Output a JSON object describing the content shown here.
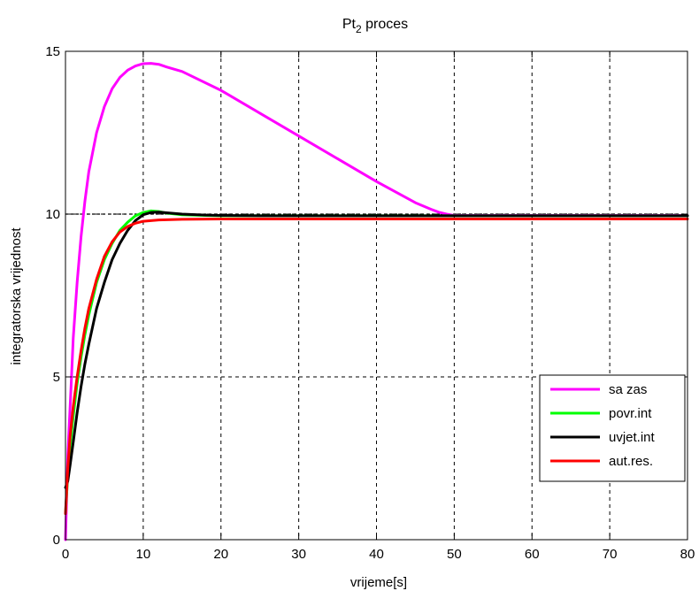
{
  "chart_data": {
    "type": "line",
    "title": {
      "main": "Pt",
      "subscript": "2",
      "rest": " proces"
    },
    "xlabel": "vrijeme[s]",
    "ylabel": "integratorska vrijednost",
    "xlim": [
      0,
      80
    ],
    "ylim": [
      0,
      15
    ],
    "xticks": [
      0,
      10,
      20,
      30,
      40,
      50,
      60,
      70,
      80
    ],
    "yticks": [
      0,
      5,
      10,
      15
    ],
    "grid": "dashed",
    "legend_position": "bottom-right",
    "series": [
      {
        "name": "sa zas",
        "color": "#ff00ff",
        "x": [
          0,
          0.3,
          0.7,
          1.0,
          1.5,
          2.0,
          2.5,
          3.0,
          4.0,
          5.0,
          6.0,
          7.0,
          8.0,
          9.0,
          10.0,
          11.0,
          12.0,
          13.0,
          15.0,
          20.0,
          25.0,
          30.0,
          35.0,
          40.0,
          45.0,
          47.0,
          48.0,
          49.0,
          49.7,
          50.0,
          55.0,
          60.0,
          70.0,
          80.0
        ],
        "y": [
          0.0,
          2.6,
          4.6,
          6.2,
          7.9,
          9.3,
          10.4,
          11.3,
          12.5,
          13.3,
          13.85,
          14.2,
          14.42,
          14.55,
          14.62,
          14.63,
          14.6,
          14.52,
          14.38,
          13.8,
          13.1,
          12.4,
          11.7,
          11.0,
          10.35,
          10.15,
          10.06,
          10.0,
          9.97,
          9.96,
          9.96,
          9.96,
          9.96,
          9.96
        ]
      },
      {
        "name": "povr.int",
        "color": "#00ff00",
        "x": [
          0,
          0.3,
          0.6,
          1.0,
          1.5,
          2.0,
          2.5,
          3.0,
          4.0,
          5.0,
          6.0,
          7.0,
          8.0,
          9.0,
          10.0,
          11.0,
          12.0,
          13.0,
          15.0,
          18.0,
          20.0,
          25.0,
          30.0,
          40.0,
          50.0,
          60.0,
          70.0,
          80.0
        ],
        "y": [
          0.8,
          2.0,
          2.9,
          3.8,
          4.8,
          5.6,
          6.3,
          6.9,
          7.9,
          8.6,
          9.1,
          9.5,
          9.75,
          9.95,
          10.05,
          10.1,
          10.08,
          10.03,
          9.98,
          9.96,
          9.95,
          9.95,
          9.95,
          9.95,
          9.95,
          9.95,
          9.95,
          9.95
        ]
      },
      {
        "name": "uvjet.int",
        "color": "#000000",
        "x": [
          0,
          0.3,
          0.6,
          1.0,
          1.5,
          2.0,
          2.5,
          3.0,
          4.0,
          5.0,
          6.0,
          7.0,
          8.0,
          9.0,
          10.0,
          11.0,
          12.0,
          13.0,
          15.0,
          18.0,
          20.0,
          25.0,
          30.0,
          40.0,
          50.0,
          60.0,
          70.0,
          80.0
        ],
        "y": [
          1.6,
          1.8,
          2.3,
          3.0,
          3.9,
          4.7,
          5.4,
          6.0,
          7.1,
          7.9,
          8.6,
          9.1,
          9.5,
          9.8,
          9.98,
          10.05,
          10.06,
          10.04,
          10.0,
          9.97,
          9.96,
          9.95,
          9.95,
          9.95,
          9.95,
          9.95,
          9.95,
          9.95
        ]
      },
      {
        "name": "aut.res.",
        "color": "#ff0000",
        "x": [
          0,
          0.3,
          0.6,
          1.0,
          1.5,
          2.0,
          2.5,
          3.0,
          4.0,
          5.0,
          6.0,
          7.0,
          8.0,
          9.0,
          10.0,
          12.0,
          15.0,
          20.0,
          30.0,
          40.0,
          50.0,
          60.0,
          70.0,
          80.0
        ],
        "y": [
          0.8,
          2.2,
          3.2,
          4.1,
          5.0,
          5.8,
          6.5,
          7.1,
          8.0,
          8.7,
          9.15,
          9.45,
          9.62,
          9.72,
          9.78,
          9.82,
          9.84,
          9.85,
          9.85,
          9.85,
          9.85,
          9.85,
          9.85,
          9.85
        ]
      }
    ],
    "reference_lines": [
      {
        "y": 10,
        "color": "#000000",
        "style": "dashed"
      }
    ]
  }
}
